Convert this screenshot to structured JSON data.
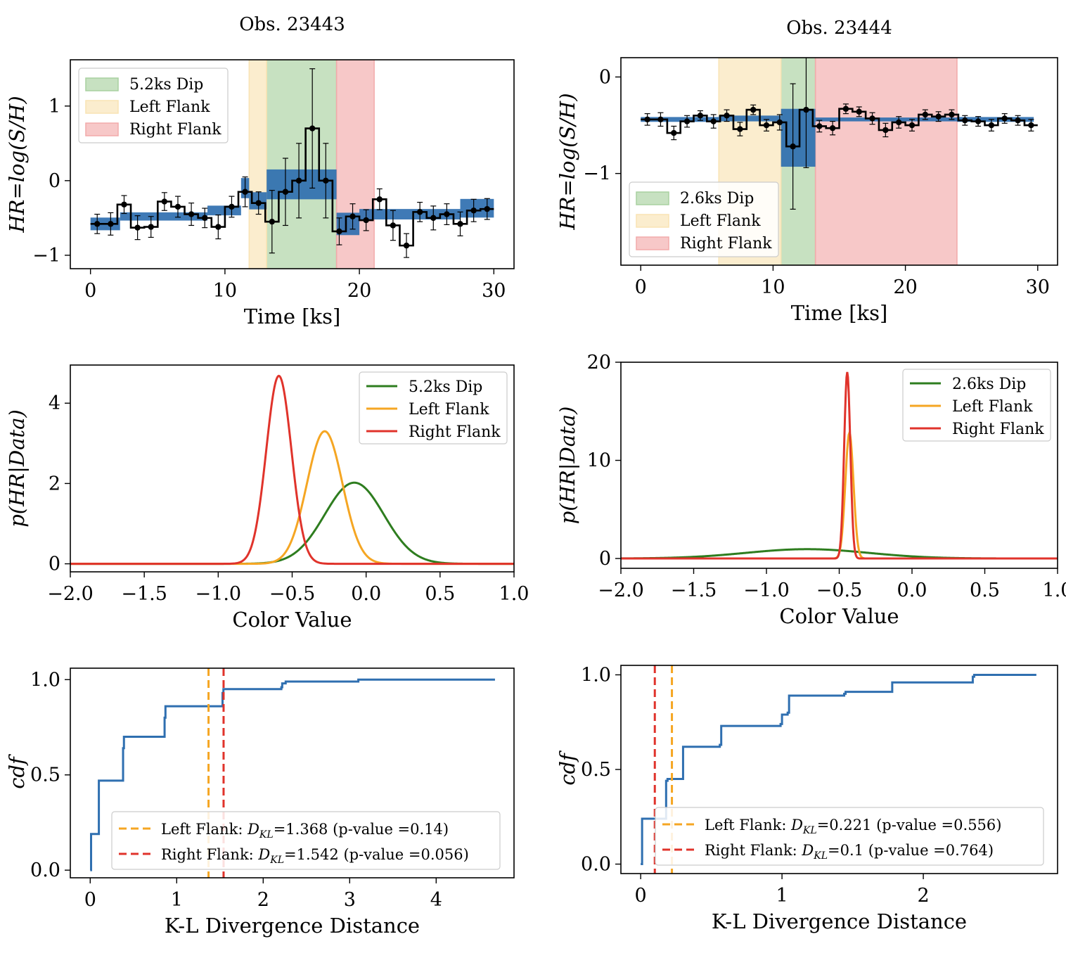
{
  "figure": {
    "titles": [
      "Obs. 23443",
      "Obs. 23444"
    ]
  },
  "colors": {
    "data_blue": "#2f6fb0",
    "dip_green": "#2e7d1f",
    "left_orange": "#f5a623",
    "right_red": "#e0332b",
    "dip_fill": "#a9d1a0",
    "left_fill": "#f9e3b4",
    "right_fill": "#f2aaaa"
  },
  "chart_data": [
    {
      "id": "hr_23443",
      "type": "line",
      "title": "Obs. 23443",
      "xlabel": "Time [ks]",
      "ylabel": "HR=log(S/H)",
      "xlim": [
        -1.5,
        31.5
      ],
      "ylim": [
        -1.18,
        1.62
      ],
      "xticks": [
        0,
        10,
        20,
        30
      ],
      "yticks": [
        -1,
        0,
        1
      ],
      "regions": [
        {
          "label": "5.2ks Dip",
          "x0": 13.1,
          "x1": 18.3,
          "color": "dip_fill"
        },
        {
          "label": "Left Flank",
          "x0": 11.8,
          "x1": 13.1,
          "color": "left_fill"
        },
        {
          "label": "Right Flank",
          "x0": 18.3,
          "x1": 21.1,
          "color": "right_fill"
        }
      ],
      "blocks": [
        {
          "x0": 0,
          "x1": 2.2,
          "y": -0.58,
          "h": 0.17
        },
        {
          "x0": 2.2,
          "x1": 8.7,
          "y": -0.48,
          "h": 0.11
        },
        {
          "x0": 8.7,
          "x1": 11.2,
          "y": -0.4,
          "h": 0.13
        },
        {
          "x0": 11.2,
          "x1": 11.8,
          "y": -0.1,
          "h": 0.27
        },
        {
          "x0": 11.8,
          "x1": 13.1,
          "y": -0.27,
          "h": 0.23
        },
        {
          "x0": 13.1,
          "x1": 18.3,
          "y": -0.05,
          "h": 0.4
        },
        {
          "x0": 18.3,
          "x1": 20.0,
          "y": -0.58,
          "h": 0.3
        },
        {
          "x0": 20.0,
          "x1": 27.5,
          "y": -0.45,
          "h": 0.14
        },
        {
          "x0": 27.5,
          "x1": 30.0,
          "y": -0.37,
          "h": 0.25
        }
      ],
      "step_x": [
        0.5,
        1.5,
        2.5,
        3.5,
        4.5,
        5.5,
        6.5,
        7.5,
        8.5,
        9.5,
        10.5,
        11.5,
        12.5,
        13.5,
        14.5,
        15.5,
        16.5,
        17.5,
        18.5,
        19.5,
        20.5,
        21.5,
        22.5,
        23.5,
        24.5,
        25.5,
        26.5,
        27.5,
        28.5,
        29.5
      ],
      "step_y": [
        -0.58,
        -0.58,
        -0.32,
        -0.63,
        -0.62,
        -0.28,
        -0.35,
        -0.45,
        -0.5,
        -0.62,
        -0.35,
        -0.15,
        -0.3,
        -0.55,
        -0.15,
        0.0,
        0.7,
        0.0,
        -0.68,
        -0.48,
        -0.53,
        -0.25,
        -0.6,
        -0.87,
        -0.42,
        -0.5,
        -0.45,
        -0.58,
        -0.4,
        -0.38
      ],
      "err": [
        0.13,
        0.15,
        0.12,
        0.16,
        0.14,
        0.12,
        0.14,
        0.15,
        0.13,
        0.16,
        0.14,
        0.2,
        0.15,
        0.42,
        0.45,
        0.5,
        0.8,
        0.5,
        0.18,
        0.17,
        0.14,
        0.14,
        0.2,
        0.16,
        0.13,
        0.16,
        0.14,
        0.16,
        0.15,
        0.14
      ],
      "legend": [
        "5.2ks Dip",
        "Left Flank",
        "Right Flank"
      ],
      "legend_position": "upper-left"
    },
    {
      "id": "hr_23444",
      "type": "line",
      "title": "Obs. 23444",
      "xlabel": "Time [ks]",
      "ylabel": "HR=log(S/H)",
      "xlim": [
        -1.5,
        31.5
      ],
      "ylim": [
        -1.95,
        0.2
      ],
      "xticks": [
        0,
        10,
        20,
        30
      ],
      "yticks": [
        -1,
        0
      ],
      "regions": [
        {
          "label": "2.6ks Dip",
          "x0": 10.6,
          "x1": 13.2,
          "color": "dip_fill"
        },
        {
          "label": "Left Flank",
          "x0": 5.9,
          "x1": 10.6,
          "color": "left_fill"
        },
        {
          "label": "Right Flank",
          "x0": 13.2,
          "x1": 23.9,
          "color": "right_fill"
        }
      ],
      "blocks": [
        {
          "x0": 0,
          "x1": 5.9,
          "y": -0.44,
          "h": 0.05
        },
        {
          "x0": 5.9,
          "x1": 10.6,
          "y": -0.43,
          "h": 0.06
        },
        {
          "x0": 10.6,
          "x1": 13.2,
          "y": -0.63,
          "h": 0.6
        },
        {
          "x0": 13.2,
          "x1": 23.9,
          "y": -0.44,
          "h": 0.04
        },
        {
          "x0": 23.9,
          "x1": 29.7,
          "y": -0.44,
          "h": 0.05
        }
      ],
      "step_x": [
        0.5,
        1.5,
        2.5,
        3.5,
        4.5,
        5.5,
        6.5,
        7.5,
        8.5,
        9.5,
        10.5,
        11.5,
        12.5,
        13.5,
        14.5,
        15.5,
        16.5,
        17.5,
        18.5,
        19.5,
        20.5,
        21.5,
        22.5,
        23.5,
        24.5,
        25.5,
        26.5,
        27.5,
        28.5,
        29.5
      ],
      "step_y": [
        -0.44,
        -0.44,
        -0.58,
        -0.46,
        -0.4,
        -0.46,
        -0.4,
        -0.54,
        -0.34,
        -0.5,
        -0.47,
        -0.72,
        -0.34,
        -0.51,
        -0.53,
        -0.33,
        -0.36,
        -0.43,
        -0.55,
        -0.47,
        -0.5,
        -0.39,
        -0.41,
        -0.39,
        -0.45,
        -0.46,
        -0.5,
        -0.43,
        -0.45,
        -0.5
      ],
      "err": [
        0.06,
        0.07,
        0.07,
        0.06,
        0.05,
        0.07,
        0.06,
        0.07,
        0.05,
        0.06,
        0.08,
        0.65,
        0.6,
        0.06,
        0.07,
        0.05,
        0.05,
        0.06,
        0.07,
        0.06,
        0.06,
        0.05,
        0.05,
        0.05,
        0.05,
        0.05,
        0.06,
        0.05,
        0.05,
        0.06
      ],
      "legend": [
        "2.6ks Dip",
        "Left Flank",
        "Right Flank"
      ],
      "legend_position": "lower-left"
    },
    {
      "id": "pdf_23443",
      "type": "line",
      "xlabel": "Color Value",
      "ylabel": "p(HR|Data)",
      "xlim": [
        -2.0,
        1.0
      ],
      "ylim": [
        -0.2,
        4.95
      ],
      "xticks": [
        -2.0,
        -1.5,
        -1.0,
        -0.5,
        0.0,
        0.5,
        1.0
      ],
      "xtick_labels": [
        "−2.0",
        "−1.5",
        "−1.0",
        "−0.5",
        "0.0",
        "0.5",
        "1.0"
      ],
      "yticks": [
        0,
        2,
        4
      ],
      "series": [
        {
          "name": "5.2ks Dip",
          "mu": -0.08,
          "sigma": 0.2,
          "peak": 2.02,
          "color": "dip_green"
        },
        {
          "name": "Left Flank",
          "mu": -0.28,
          "sigma": 0.12,
          "peak": 3.3,
          "color": "left_orange"
        },
        {
          "name": "Right Flank",
          "mu": -0.59,
          "sigma": 0.085,
          "peak": 4.68,
          "color": "right_red"
        }
      ],
      "legend_position": "upper-right"
    },
    {
      "id": "pdf_23444",
      "type": "line",
      "xlabel": "Color Value",
      "ylabel": "p(HR|Data)",
      "xlim": [
        -2.0,
        1.0
      ],
      "ylim": [
        -1.0,
        20.0
      ],
      "xticks": [
        -2.0,
        -1.5,
        -1.0,
        -0.5,
        0.0,
        0.5,
        1.0
      ],
      "xtick_labels": [
        "−2.0",
        "−1.5",
        "−1.0",
        "−0.5",
        "0.0",
        "0.5",
        "1.0"
      ],
      "yticks": [
        0,
        10,
        20
      ],
      "series": [
        {
          "name": "2.6ks Dip",
          "mu": -0.72,
          "sigma": 0.42,
          "peak": 0.95,
          "color": "dip_green"
        },
        {
          "name": "Left Flank",
          "mu": -0.43,
          "sigma": 0.028,
          "peak": 12.8,
          "color": "left_orange"
        },
        {
          "name": "Right Flank",
          "mu": -0.445,
          "sigma": 0.021,
          "peak": 19.0,
          "color": "right_red"
        }
      ],
      "legend_position": "upper-right"
    },
    {
      "id": "cdf_23443",
      "type": "line",
      "xlabel": "K-L Divergence Distance",
      "ylabel": "cdf",
      "xlim": [
        -0.23,
        4.9
      ],
      "ylim": [
        -0.04,
        1.06
      ],
      "xticks": [
        0,
        1,
        2,
        3,
        4
      ],
      "yticks": [
        0.0,
        0.5,
        1.0
      ],
      "ytick_labels": [
        "0.0",
        "0.5",
        "1.0"
      ],
      "cdf_x": [
        0,
        0.01,
        0.1,
        0.38,
        0.39,
        0.86,
        0.87,
        1.53,
        1.54,
        2.21,
        2.22,
        2.26,
        3.1,
        4.68
      ],
      "cdf_y": [
        0.0,
        0.19,
        0.47,
        0.64,
        0.7,
        0.8,
        0.86,
        0.93,
        0.95,
        0.96,
        0.98,
        0.99,
        1.0,
        1.0
      ],
      "vlines": [
        {
          "name": "Left Flank",
          "x": 1.368,
          "color": "left_orange",
          "label_pre": "Left Flank: ",
          "dkl": "1.368",
          "pval": " (p-value =0.14)"
        },
        {
          "name": "Right Flank",
          "x": 1.542,
          "color": "right_red",
          "label_pre": "Right Flank: ",
          "dkl": "1.542",
          "pval": " (p-value =0.056)"
        }
      ],
      "legend_position": "lower-right"
    },
    {
      "id": "cdf_23444",
      "type": "line",
      "xlabel": "K-L Divergence Distance",
      "ylabel": "cdf",
      "xlim": [
        -0.14,
        2.95
      ],
      "ylim": [
        -0.05,
        1.05
      ],
      "xticks": [
        0,
        1,
        2
      ],
      "yticks": [
        0.0,
        0.5,
        1.0
      ],
      "ytick_labels": [
        "0.0",
        "0.5",
        "1.0"
      ],
      "cdf_x": [
        0,
        0.01,
        0.18,
        0.19,
        0.3,
        0.56,
        0.57,
        0.99,
        1.0,
        1.04,
        1.05,
        1.44,
        1.45,
        1.78,
        1.79,
        2.35,
        2.36,
        2.8
      ],
      "cdf_y": [
        0.0,
        0.24,
        0.44,
        0.45,
        0.62,
        0.63,
        0.73,
        0.74,
        0.79,
        0.8,
        0.89,
        0.9,
        0.91,
        0.96,
        0.96,
        0.99,
        1.0,
        1.0
      ],
      "vlines": [
        {
          "name": "Left Flank",
          "x": 0.221,
          "color": "left_orange",
          "label_pre": "Left Flank: ",
          "dkl": "0.221",
          "pval": " (p-value =0.556)"
        },
        {
          "name": "Right Flank",
          "x": 0.1,
          "color": "right_red",
          "label_pre": "Right Flank: ",
          "dkl": "0.1",
          "pval": " (p-value =0.764)"
        }
      ],
      "legend_position": "lower-right"
    }
  ]
}
